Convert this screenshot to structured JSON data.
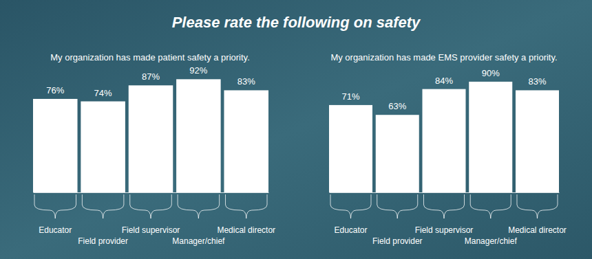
{
  "title": "Please rate the following on safety",
  "chart_data": [
    {
      "type": "bar",
      "title": "My organization has made patient safety a priority.",
      "categories": [
        "Educator",
        "Field provider",
        "Field supervisor",
        "Manager/chief",
        "Medical director"
      ],
      "values": [
        76,
        74,
        87,
        92,
        83
      ],
      "value_labels": [
        "76%",
        "74%",
        "87%",
        "92%",
        "83%"
      ],
      "color": "#ffffff",
      "ylim": [
        0,
        100
      ],
      "data_labels": true,
      "tick_labels": "x"
    },
    {
      "type": "bar",
      "title": "My organization has made EMS provider safety a priority.",
      "categories": [
        "Educator",
        "Field provider",
        "Field supervisor",
        "Manager/chief",
        "Medical director"
      ],
      "values": [
        71,
        63,
        84,
        90,
        83
      ],
      "value_labels": [
        "71%",
        "63%",
        "84%",
        "90%",
        "83%"
      ],
      "color": "#ffffff",
      "ylim": [
        0,
        100
      ],
      "data_labels": true,
      "tick_labels": "x"
    }
  ]
}
